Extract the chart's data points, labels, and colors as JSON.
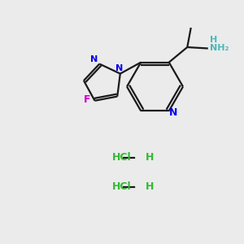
{
  "bg_color": "#ebebeb",
  "bond_color": "#1a1a1a",
  "N_color": "#0000ee",
  "F_color": "#cc00cc",
  "NH2_color": "#4db8b8",
  "Cl_color": "#33b833",
  "figsize": [
    3.0,
    3.0
  ],
  "dpi": 100,
  "xlim": [
    0,
    10
  ],
  "ylim": [
    0,
    10
  ]
}
